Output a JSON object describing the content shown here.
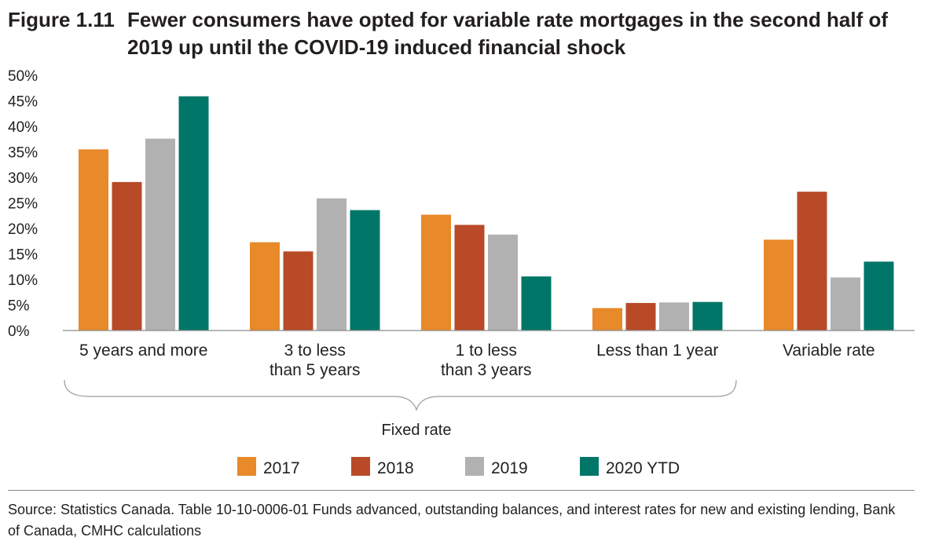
{
  "figure": {
    "label": "Figure 1.11",
    "title": "Fewer consumers have opted for variable rate mortgages in the second half of 2019 up until the COVID-19 induced financial shock"
  },
  "chart_data": {
    "type": "bar",
    "categories": [
      [
        "5 years and more"
      ],
      [
        "3 to less",
        "than 5 years"
      ],
      [
        "1 to less",
        "than 3 years"
      ],
      [
        "Less than 1 year"
      ],
      [
        "Variable rate"
      ]
    ],
    "series": [
      {
        "name": "2017",
        "color": "#e8892a",
        "values": [
          35.5,
          17.3,
          22.7,
          4.4,
          17.8
        ]
      },
      {
        "name": "2018",
        "color": "#b84a27",
        "values": [
          29.1,
          15.5,
          20.7,
          5.4,
          27.2
        ]
      },
      {
        "name": "2019",
        "color": "#b2b1b2",
        "values": [
          37.6,
          25.9,
          18.8,
          5.5,
          10.4
        ]
      },
      {
        "name": "2020 YTD",
        "color": "#007668",
        "values": [
          45.9,
          23.6,
          10.6,
          5.6,
          13.5
        ]
      }
    ],
    "yticks": [
      "0%",
      "5%",
      "10%",
      "15%",
      "20%",
      "25%",
      "30%",
      "35%",
      "40%",
      "45%",
      "50%"
    ],
    "ylim": [
      0,
      50
    ],
    "group_annotation": "Fixed rate",
    "legend_position": "bottom",
    "grid": false
  },
  "source": {
    "text": "Source: Statistics Canada.  Table  10-10-0006-01   Funds advanced, outstanding balances, and interest rates for new and existing lending, Bank of Canada, CMHC calculations"
  }
}
